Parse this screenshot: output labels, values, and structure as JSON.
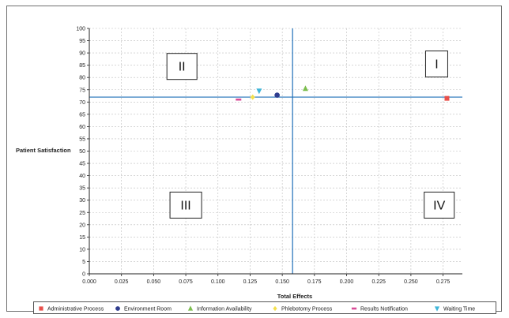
{
  "chart_data": {
    "type": "scatter",
    "xlabel": "Total Effects",
    "ylabel": "Patient Satisfaction",
    "xlim": [
      0,
      0.29
    ],
    "ylim": [
      0,
      100
    ],
    "x_ticks": [
      "0.000",
      "0.025",
      "0.050",
      "0.075",
      "0.100",
      "0.125",
      "0.150",
      "0.175",
      "0.200",
      "0.225",
      "0.250",
      "0.275"
    ],
    "y_ticks": [
      "0",
      "5",
      "10",
      "15",
      "20",
      "25",
      "30",
      "35",
      "40",
      "45",
      "50",
      "55",
      "60",
      "65",
      "70",
      "75",
      "80",
      "85",
      "90",
      "95",
      "100"
    ],
    "grid": true,
    "legend_position": "bottom",
    "reference_lines": {
      "vertical_x": 0.158,
      "horizontal_y": 72
    },
    "quadrant_labels": [
      {
        "label": "I",
        "x": 0.27,
        "y": 85.5
      },
      {
        "label": "II",
        "x": 0.072,
        "y": 84.5
      },
      {
        "label": "III",
        "x": 0.075,
        "y": 28
      },
      {
        "label": "IV",
        "x": 0.272,
        "y": 28
      }
    ],
    "series": [
      {
        "name": "Administrative Process",
        "marker": "square",
        "color": "#e8504b",
        "points": [
          {
            "x": 0.278,
            "y": 71.5
          }
        ]
      },
      {
        "name": "Environment Room",
        "marker": "circle",
        "color": "#2f3d8f",
        "points": [
          {
            "x": 0.146,
            "y": 72.8
          }
        ]
      },
      {
        "name": "Information Availability",
        "marker": "triangle-up",
        "color": "#7cbe4e",
        "points": [
          {
            "x": 0.168,
            "y": 75.5
          }
        ]
      },
      {
        "name": "Phlebotomy Process",
        "marker": "diamond",
        "color": "#f4e04d",
        "points": [
          {
            "x": 0.127,
            "y": 72.0
          }
        ]
      },
      {
        "name": "Results Notification",
        "marker": "dash",
        "color": "#d94c98",
        "points": [
          {
            "x": 0.116,
            "y": 71.0
          }
        ]
      },
      {
        "name": "Waiting Time",
        "marker": "triangle-down",
        "color": "#3fb6d9",
        "points": [
          {
            "x": 0.132,
            "y": 74.5
          }
        ]
      }
    ]
  },
  "colors": {
    "axis": "#222222",
    "grid": "#bdbdbd",
    "reference_line": "#1f6fb8"
  }
}
